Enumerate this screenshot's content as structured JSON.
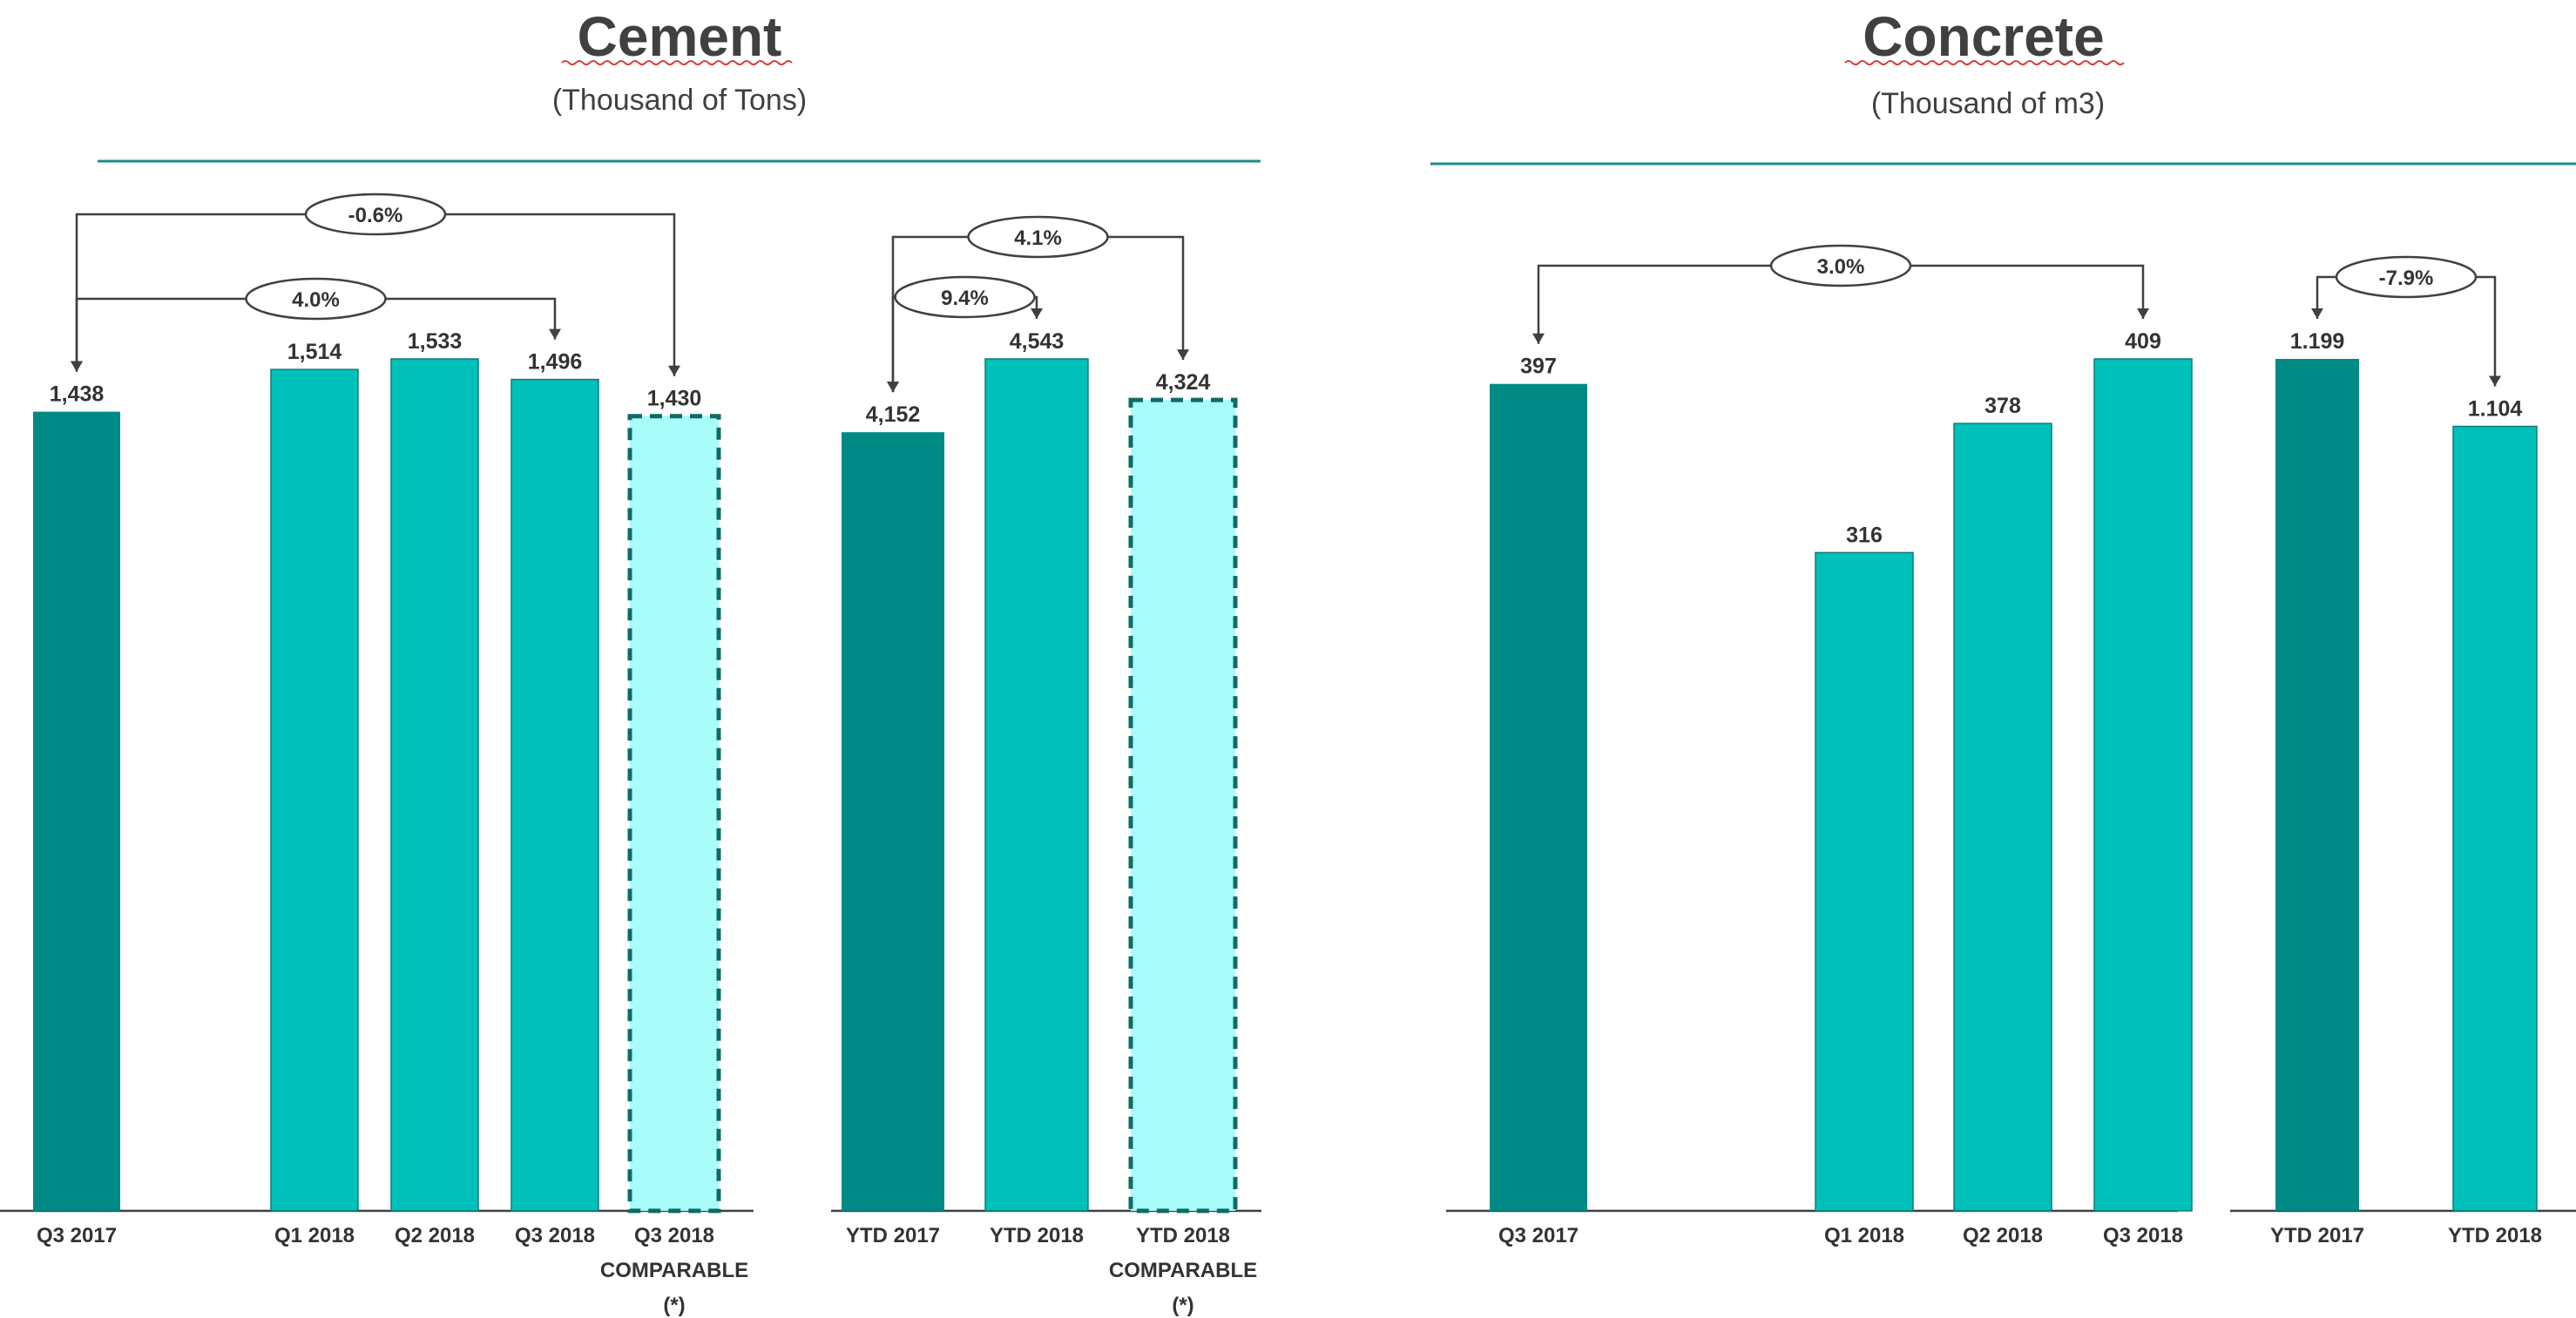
{
  "colors": {
    "dark_teal": "#008a85",
    "teal": "#00c0ba",
    "comparable_fill": "#a8fdfb",
    "comparable_border": "#0e6b68",
    "rule": "#1e8c88",
    "text": "#404040"
  },
  "chart_data": [
    {
      "type": "bar",
      "title": "Cement",
      "subtitle": "(Thousand of Tons)",
      "panels": [
        {
          "categories": [
            "Q3 2017",
            "Q1 2018",
            "Q2 2018",
            "Q3 2018",
            "Q3 2018 COMPARABLE (*)"
          ],
          "category_lines": [
            [
              "Q3 2017"
            ],
            [
              "Q1 2018"
            ],
            [
              "Q2 2018"
            ],
            [
              "Q3 2018"
            ],
            [
              "Q3 2018",
              "COMPARABLE",
              "(*)"
            ]
          ],
          "values": [
            1438,
            1514,
            1533,
            1496,
            1430
          ],
          "value_labels": [
            "1,438",
            "1,514",
            "1,533",
            "1,496",
            "1,430"
          ],
          "styles": [
            "dark",
            "light",
            "light",
            "light",
            "comparable"
          ],
          "ylim": [
            0,
            1533
          ],
          "changes": [
            {
              "label": "-0.6%",
              "from": 0,
              "to": 4,
              "level": 2
            },
            {
              "label": "4.0%",
              "from": 0,
              "to": 3,
              "level": 1
            }
          ]
        },
        {
          "categories": [
            "YTD 2017",
            "YTD 2018",
            "YTD 2018 COMPARABLE (*)"
          ],
          "category_lines": [
            [
              "YTD 2017"
            ],
            [
              "YTD 2018"
            ],
            [
              "YTD 2018",
              "COMPARABLE",
              "(*)"
            ]
          ],
          "values": [
            4152,
            4543,
            4324
          ],
          "value_labels": [
            "4,152",
            "4,543",
            "4,324"
          ],
          "styles": [
            "dark",
            "light",
            "comparable"
          ],
          "ylim": [
            0,
            4543
          ],
          "changes": [
            {
              "label": "4.1%",
              "from": 0,
              "to": 2,
              "level": 2
            },
            {
              "label": "9.4%",
              "from": 0,
              "to": 1,
              "level": 1
            }
          ]
        }
      ]
    },
    {
      "type": "bar",
      "title": "Concrete",
      "subtitle": "(Thousand of m3)",
      "panels": [
        {
          "categories": [
            "Q3 2017",
            "Q1 2018",
            "Q2 2018",
            "Q3 2018"
          ],
          "category_lines": [
            [
              "Q3 2017"
            ],
            [
              "Q1 2018"
            ],
            [
              "Q2 2018"
            ],
            [
              "Q3 2018"
            ]
          ],
          "values": [
            397,
            316,
            378,
            409
          ],
          "value_labels": [
            "397",
            "316",
            "378",
            "409"
          ],
          "styles": [
            "dark",
            "light",
            "light",
            "light"
          ],
          "ylim": [
            0,
            409
          ],
          "changes": [
            {
              "label": "3.0%",
              "from": 0,
              "to": 3,
              "level": 1
            }
          ]
        },
        {
          "categories": [
            "YTD 2017",
            "YTD 2018"
          ],
          "category_lines": [
            [
              "YTD 2017"
            ],
            [
              "YTD 2018"
            ]
          ],
          "values": [
            1199,
            1104
          ],
          "value_labels": [
            "1.199",
            "1.104"
          ],
          "styles": [
            "dark",
            "light"
          ],
          "ylim": [
            0,
            1199
          ],
          "changes": [
            {
              "label": "-7.9%",
              "from": 0,
              "to": 1,
              "level": 1
            }
          ]
        }
      ]
    }
  ]
}
